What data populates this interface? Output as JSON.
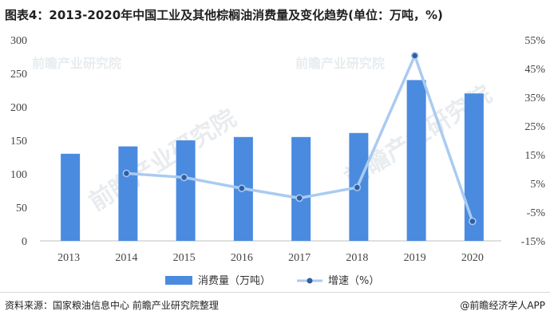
{
  "title": "图表4：2013-2020年中国工业及其他棕榈油消费量及变化趋势(单位：万吨，%)",
  "watermark": "前瞻产业研究院",
  "footer": {
    "source": "资料来源：国家粮油信息中心 前瞻产业研究院整理",
    "brand": "@前瞻经济学人APP"
  },
  "colors": {
    "bar": "#4a8be0",
    "line": "#a9cbf2",
    "marker": "#2f5f9e"
  },
  "chart_data": {
    "type": "bar",
    "categories": [
      "2013",
      "2014",
      "2015",
      "2016",
      "2017",
      "2018",
      "2019",
      "2020"
    ],
    "series": [
      {
        "name": "消费量（万吨）",
        "type": "bar",
        "axis": "left",
        "values": [
          130,
          141,
          150,
          155,
          155,
          161,
          240,
          220
        ]
      },
      {
        "name": "增速（%）",
        "type": "line",
        "axis": "right",
        "values": [
          null,
          8.5,
          7.1,
          3.3,
          -0.1,
          3.6,
          49.5,
          -8.2
        ]
      }
    ],
    "y_left": {
      "ylim": [
        0,
        300
      ],
      "ticks": [
        "0",
        "50",
        "100",
        "150",
        "200",
        "250",
        "300"
      ]
    },
    "y_right": {
      "ylim": [
        -15,
        55
      ],
      "ticks": [
        "-15%",
        "-5%",
        "5%",
        "15%",
        "25%",
        "35%",
        "45%",
        "55%"
      ]
    },
    "legend_position": "bottom"
  }
}
